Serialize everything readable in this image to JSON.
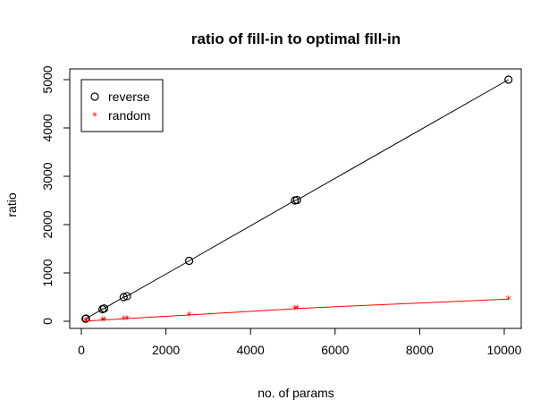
{
  "chart_data": {
    "type": "line",
    "title": "ratio of fill-in to optimal fill-in",
    "xlabel": "no. of params",
    "ylabel": "ratio",
    "xlim": [
      0,
      10000
    ],
    "ylim": [
      0,
      5000
    ],
    "x_ticks": [
      0,
      2000,
      4000,
      6000,
      8000,
      10000
    ],
    "y_ticks": [
      0,
      1000,
      2000,
      3000,
      4000,
      5000
    ],
    "x_tick_labels": [
      "0",
      "2000",
      "4000",
      "6000",
      "8000",
      "10000"
    ],
    "y_tick_labels": [
      "0",
      "1000",
      "2000",
      "3000",
      "4000",
      "5000"
    ],
    "grid": false,
    "legend_position": "top-left",
    "series": [
      {
        "name": "reverse",
        "color": "#000000",
        "marker": "o",
        "x": [
          100,
          110,
          500,
          540,
          1000,
          1080,
          2550,
          5050,
          5100,
          10100
        ],
        "y": [
          50,
          55,
          250,
          265,
          500,
          520,
          1250,
          2500,
          2510,
          5000
        ]
      },
      {
        "name": "random",
        "color": "#ff0000",
        "marker": "*",
        "x": [
          100,
          110,
          500,
          540,
          1000,
          1080,
          2550,
          5050,
          5100,
          10100
        ],
        "y": [
          5,
          6,
          25,
          27,
          50,
          55,
          130,
          260,
          265,
          460
        ]
      }
    ]
  }
}
